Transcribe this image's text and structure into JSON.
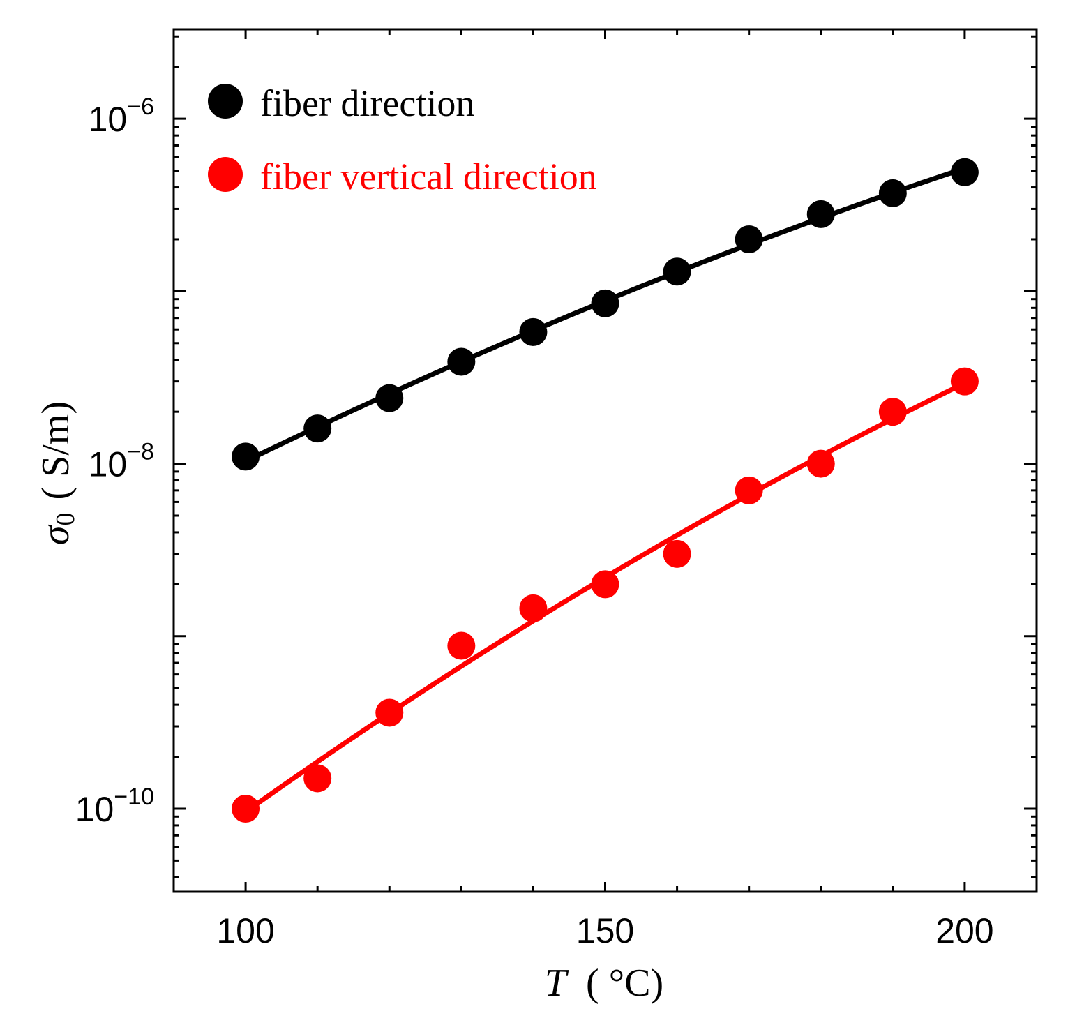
{
  "chart_data": {
    "type": "scatter",
    "title": "",
    "xlabel": {
      "symbol": "T",
      "unit": "( °C)"
    },
    "ylabel": {
      "symbol": "σ",
      "subscript": "0",
      "unit": "( S/m)"
    },
    "xlim": [
      90,
      210
    ],
    "ylim": [
      3.3e-11,
      3.3e-06
    ],
    "yscale": "log",
    "xticks": [
      100,
      150,
      200
    ],
    "xtick_labels": [
      "100",
      "150",
      "200"
    ],
    "yticks": [
      {
        "value": 1e-06,
        "base": "10",
        "exp": "−6"
      },
      {
        "value": 1e-08,
        "base": "10",
        "exp": "−8"
      },
      {
        "value": 1e-10,
        "base": "10",
        "exp": "−10"
      }
    ],
    "grid": false,
    "legend_position": "top-left",
    "series": [
      {
        "name": "fiber direction",
        "color": "#000000",
        "marker": "circle",
        "fit_line": true,
        "x": [
          100,
          110,
          120,
          130,
          140,
          150,
          160,
          170,
          180,
          190,
          200
        ],
        "y": [
          1.1e-08,
          1.6e-08,
          2.4e-08,
          3.9e-08,
          5.8e-08,
          8.5e-08,
          1.3e-07,
          2e-07,
          2.8e-07,
          3.7e-07,
          4.9e-07
        ]
      },
      {
        "name": "fiber vertical direction",
        "color": "#ff0000",
        "marker": "circle",
        "fit_line": true,
        "x": [
          100,
          110,
          120,
          130,
          140,
          150,
          160,
          170,
          180,
          190,
          200
        ],
        "y": [
          1e-10,
          1.5e-10,
          3.6e-10,
          8.8e-10,
          1.45e-09,
          2e-09,
          3e-09,
          7e-09,
          1e-08,
          2e-08,
          3e-08
        ]
      }
    ]
  }
}
